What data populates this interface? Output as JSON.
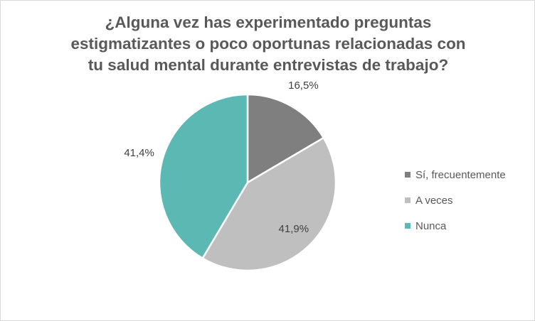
{
  "chart_data": {
    "type": "pie",
    "title_lines": [
      "¿Alguna vez has experimentado preguntas",
      "estigmatizantes o poco oportunas relacionadas con",
      "tu salud mental durante entrevistas de trabajo?"
    ],
    "slices": [
      {
        "label": "Sí, frecuentemente",
        "value": 16.5,
        "value_label": "16,5%",
        "color": "#7f7f7f"
      },
      {
        "label": "A veces",
        "value": 41.9,
        "value_label": "41,9%",
        "color": "#bfbfbf"
      },
      {
        "label": "Nunca",
        "value": 41.4,
        "value_label": "41,4%",
        "color": "#5bb8b3"
      }
    ],
    "legend_position": "right"
  }
}
